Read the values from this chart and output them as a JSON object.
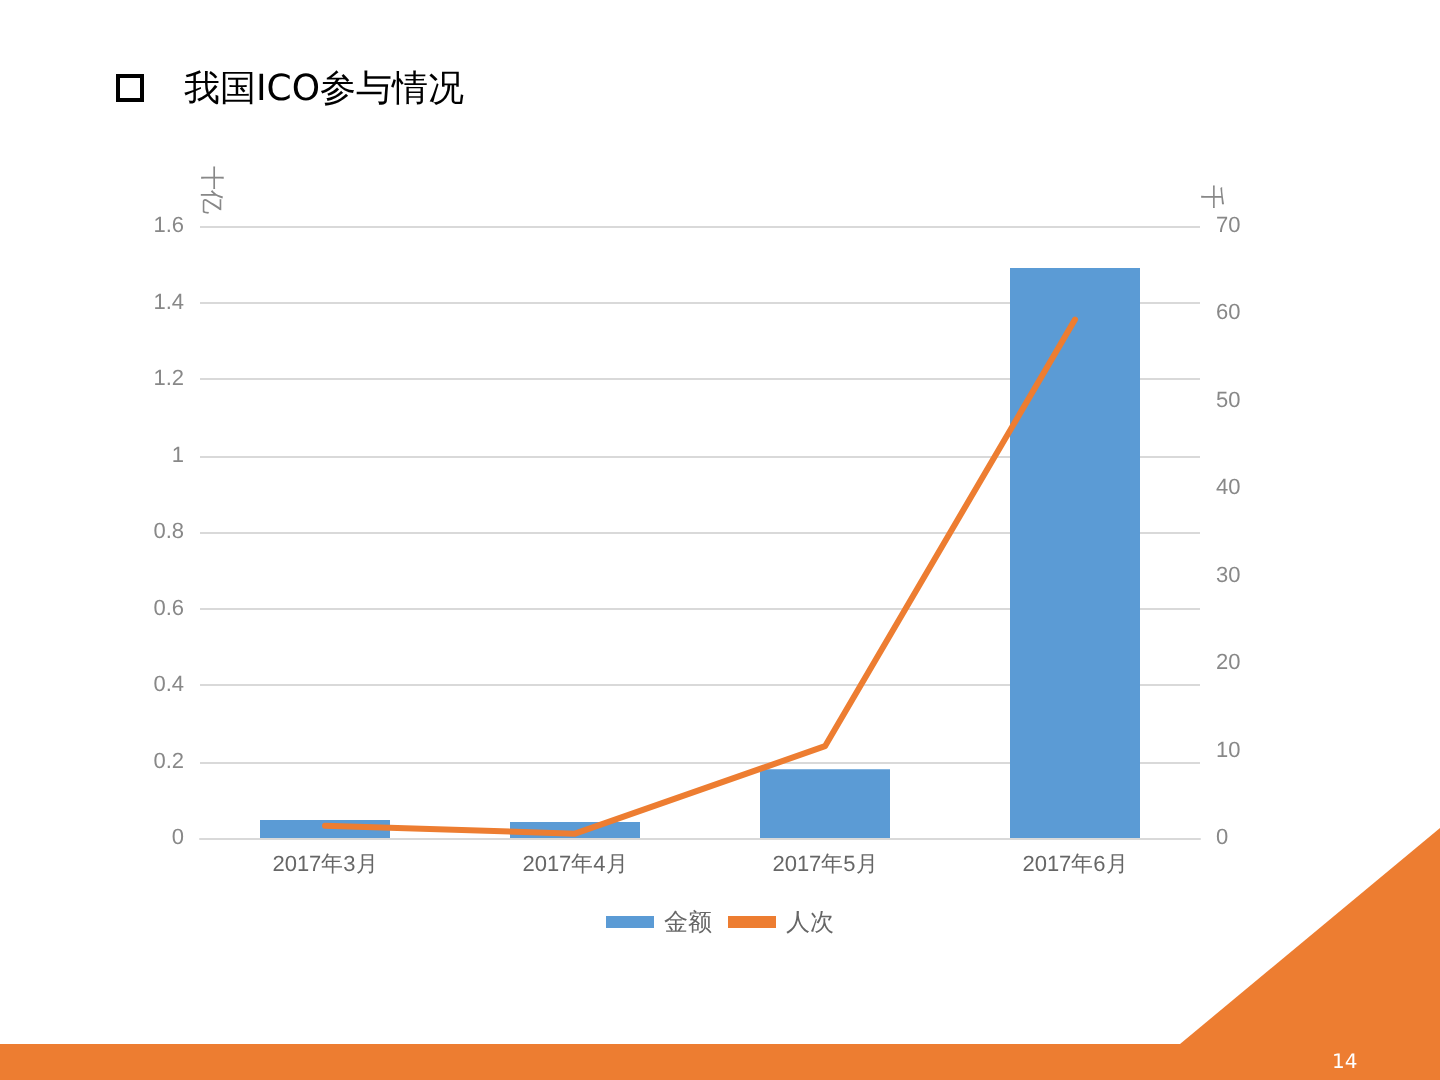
{
  "chart_data": {
    "type": "bar",
    "title": "我国ICO参与情况",
    "ylabel": "十亿",
    "y2label": "千",
    "categories": [
      "2017年3月",
      "2017年4月",
      "2017年5月",
      "2017年6月"
    ],
    "series": [
      {
        "name": "金额",
        "color": "#5b9bd5",
        "values": [
          0.047,
          0.042,
          0.18,
          1.49
        ]
      },
      {
        "name": "人次",
        "type": "line",
        "axis": "y2",
        "color": "#ed7d31",
        "values": [
          1.4,
          0.5,
          10.5,
          59.3
        ]
      }
    ],
    "ylim": [
      0,
      1.6
    ],
    "yticks": [
      0,
      0.2,
      0.4,
      0.6,
      0.8,
      1,
      1.2,
      1.4,
      1.6
    ],
    "y2lim": [
      0,
      70
    ],
    "y2ticks": [
      0,
      10,
      20,
      30,
      40,
      50,
      60,
      70
    ],
    "grid": "y",
    "legend": "bottom",
    "marker": "none",
    "annotations": [
      "14"
    ]
  }
}
